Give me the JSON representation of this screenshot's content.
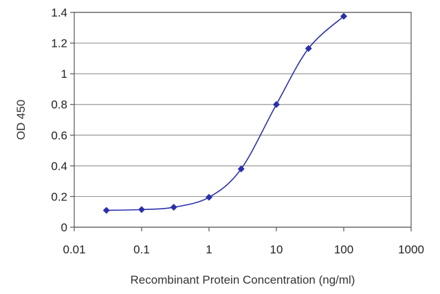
{
  "chart_data": {
    "type": "line",
    "title": "",
    "xlabel": "Recombinant Protein Concentration (ng/ml)",
    "ylabel": "OD 450",
    "x_scale": "log",
    "xlim": [
      0.01,
      1000
    ],
    "ylim": [
      0,
      1.4
    ],
    "x_ticks": [
      "0.01",
      "0.1",
      "1",
      "10",
      "100",
      "1000"
    ],
    "y_ticks": [
      "0",
      "0.2",
      "0.4",
      "0.6",
      "0.8",
      "1",
      "1.2",
      "1.4"
    ],
    "grid": "horizontal",
    "smooth": true,
    "colors": {
      "series": "#2a2faa",
      "grid": "#999999",
      "axis": "#555555"
    },
    "series": [
      {
        "x": [
          0.03,
          0.1,
          0.3,
          1,
          3,
          10,
          30,
          100
        ],
        "y": [
          0.11,
          0.115,
          0.13,
          0.195,
          0.38,
          0.8,
          1.165,
          1.375
        ]
      }
    ]
  }
}
